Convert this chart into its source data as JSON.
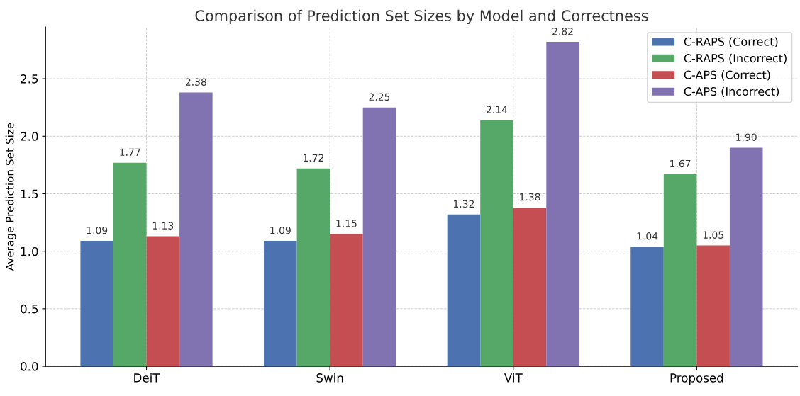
{
  "chart_data": {
    "type": "bar",
    "title": "Comparison of Prediction Set Sizes by Model and Correctness",
    "ylabel": "Average Prediction Set Size",
    "categories": [
      "DeiT",
      "Swin",
      "ViT",
      "Proposed"
    ],
    "series": [
      {
        "name": "C-RAPS (Correct)",
        "color": "#4c72b0",
        "values": [
          1.09,
          1.09,
          1.32,
          1.04
        ],
        "value_labels": [
          "1.09",
          "1.09",
          "1.32",
          "1.04"
        ]
      },
      {
        "name": "C-RAPS (Incorrect)",
        "color": "#55a868",
        "values": [
          1.77,
          1.72,
          2.14,
          1.67
        ],
        "value_labels": [
          "1.77",
          "1.72",
          "2.14",
          "1.67"
        ]
      },
      {
        "name": "C-APS (Correct)",
        "color": "#c44e52",
        "values": [
          1.13,
          1.15,
          1.38,
          1.05
        ],
        "value_labels": [
          "1.13",
          "1.15",
          "1.38",
          "1.05"
        ]
      },
      {
        "name": "C-APS (Incorrect)",
        "color": "#8172b2",
        "values": [
          2.38,
          2.25,
          2.82,
          1.9
        ],
        "value_labels": [
          "2.38",
          "2.25",
          "2.82",
          "1.90"
        ]
      }
    ],
    "ylim": [
      0,
      2.95
    ],
    "yticks": [
      {
        "value": 0,
        "label": "0.0"
      },
      {
        "value": 0.5,
        "label": "0.5"
      },
      {
        "value": 1,
        "label": "1.0"
      },
      {
        "value": 1.5,
        "label": "1.5"
      },
      {
        "value": 2,
        "label": "2.0"
      },
      {
        "value": 2.5,
        "label": "2.5"
      }
    ],
    "grid": true,
    "legend": "top right"
  }
}
